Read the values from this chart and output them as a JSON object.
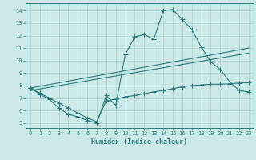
{
  "xlabel": "Humidex (Indice chaleur)",
  "bg_color": "#cce8e8",
  "line_color": "#2a7a7a",
  "grid_color": "#a8d0d0",
  "x_ticks": [
    0,
    1,
    2,
    3,
    4,
    5,
    6,
    7,
    8,
    9,
    10,
    11,
    12,
    13,
    14,
    15,
    16,
    17,
    18,
    19,
    20,
    21,
    22,
    23
  ],
  "y_ticks": [
    5,
    6,
    7,
    8,
    9,
    10,
    11,
    12,
    13,
    14
  ],
  "ylim": [
    4.6,
    14.6
  ],
  "xlim": [
    -0.5,
    23.5
  ],
  "curve1_x": [
    0,
    1,
    2,
    3,
    4,
    5,
    6,
    7,
    8,
    9,
    10,
    11,
    12,
    13,
    14,
    15,
    16,
    17,
    18,
    19,
    20,
    21,
    22,
    23
  ],
  "curve1_y": [
    7.8,
    7.3,
    6.9,
    6.2,
    5.7,
    5.5,
    5.2,
    5.0,
    7.2,
    6.4,
    10.5,
    11.9,
    12.1,
    11.7,
    14.0,
    14.1,
    13.3,
    12.5,
    11.1,
    9.9,
    9.3,
    8.3,
    7.6,
    7.5
  ],
  "curve2_x": [
    0,
    23
  ],
  "curve2_y": [
    7.8,
    11.0
  ],
  "curve3_x": [
    0,
    23
  ],
  "curve3_y": [
    7.6,
    10.6
  ],
  "curve4_x": [
    0,
    1,
    2,
    3,
    4,
    5,
    6,
    7,
    8,
    9,
    10,
    11,
    12,
    13,
    14,
    15,
    16,
    17,
    18,
    19,
    20,
    21,
    22,
    23
  ],
  "curve4_y": [
    7.8,
    7.4,
    7.0,
    6.6,
    6.2,
    5.8,
    5.4,
    5.1,
    6.8,
    6.9,
    7.1,
    7.2,
    7.35,
    7.5,
    7.6,
    7.75,
    7.9,
    8.0,
    8.05,
    8.1,
    8.1,
    8.15,
    8.2,
    8.25
  ],
  "figsize": [
    3.2,
    2.0
  ],
  "dpi": 100
}
